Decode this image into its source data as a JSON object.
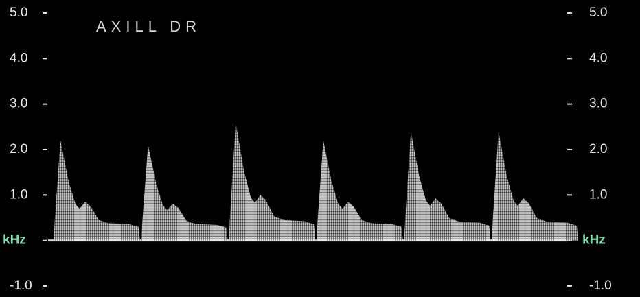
{
  "chart_data": {
    "type": "doppler",
    "title": "AXILL DR",
    "values": [
      2.2,
      2.1,
      2.6,
      2.2,
      2.4,
      2.4
    ],
    "color": "#ffffff",
    "ylim": [
      -1.0,
      5.0
    ],
    "yticks": [
      {
        "value": 5,
        "label": "5.0"
      },
      {
        "value": 4,
        "label": "4.0"
      },
      {
        "value": 3,
        "label": "3.0"
      },
      {
        "value": 2,
        "label": "2.0"
      },
      {
        "value": 1,
        "label": "1.0"
      },
      {
        "value": 0,
        "label": "kHz"
      },
      {
        "value": -1,
        "label": "-1.0"
      }
    ]
  }
}
